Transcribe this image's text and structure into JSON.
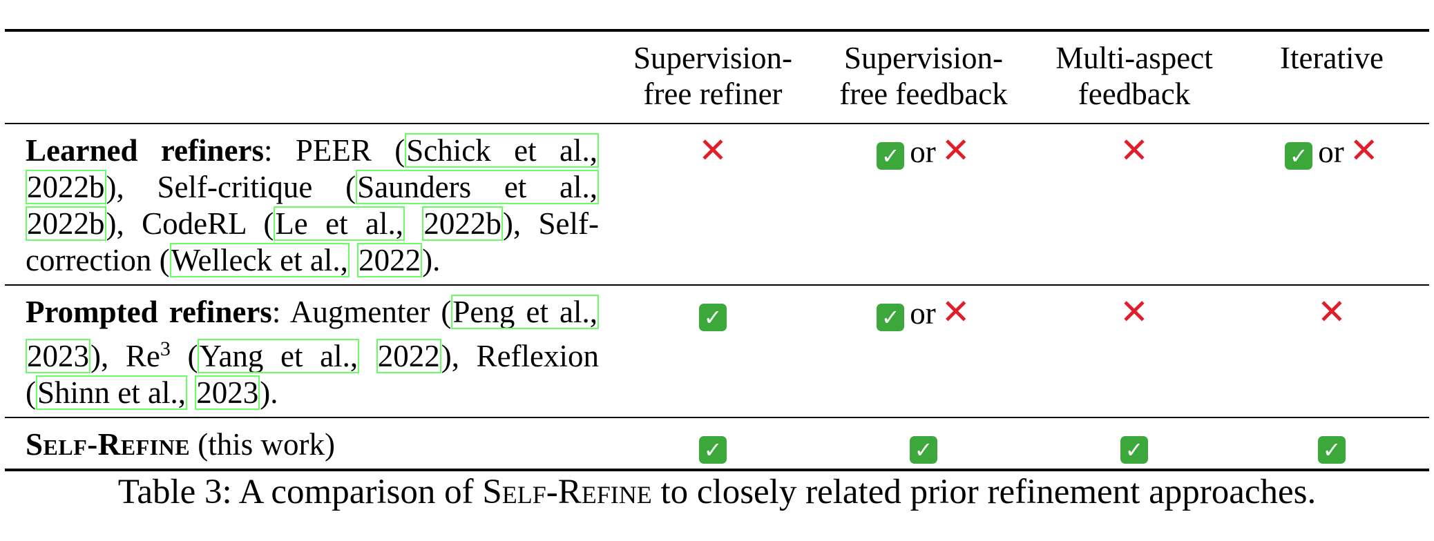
{
  "table": {
    "headers": [
      "",
      "Supervision-\nfree refiner",
      "Supervision-\nfree feedback",
      "Multi-aspect\nfeedback",
      "Iterative"
    ],
    "rows": [
      {
        "label": "Learned refiners",
        "colon": ": PEER (",
        "cites": [
          "Schick et al.,",
          "2022b",
          "), Self-critique (",
          "Saunders et al.,",
          "2022b",
          "), CodeRL (",
          "Le et al.,",
          "2022b",
          "), Self-correction (",
          "Welleck et al.,",
          "2022",
          ")."
        ],
        "marks": [
          "✕",
          "✓ or ✕",
          "✕",
          "✓ or ✕"
        ]
      },
      {
        "label": "Prompted refiners",
        "colon": ": Augmenter (",
        "cites": [
          "Peng et al.,",
          "2023",
          "), Re",
          "3",
          " (",
          "Yang et al.,",
          "2022",
          "), Reflexion (",
          "Shinn et al.,",
          "2023",
          ")."
        ],
        "marks": [
          "✓",
          "✓ or ✕",
          "✕",
          "✕"
        ]
      },
      {
        "label": "Self-Refine",
        "suffix": " (this work)",
        "marks": [
          "✓",
          "✓",
          "✓",
          "✓"
        ]
      }
    ],
    "or_text": "or",
    "check_glyph": "✓",
    "cross_glyph": "✕",
    "check_color": "#3ca83c",
    "cross_color": "#e11d2a"
  },
  "caption": {
    "prefix": "Table 3: A comparison of ",
    "name": "Self-Refine",
    "suffix": " to closely related prior refinement approaches."
  }
}
